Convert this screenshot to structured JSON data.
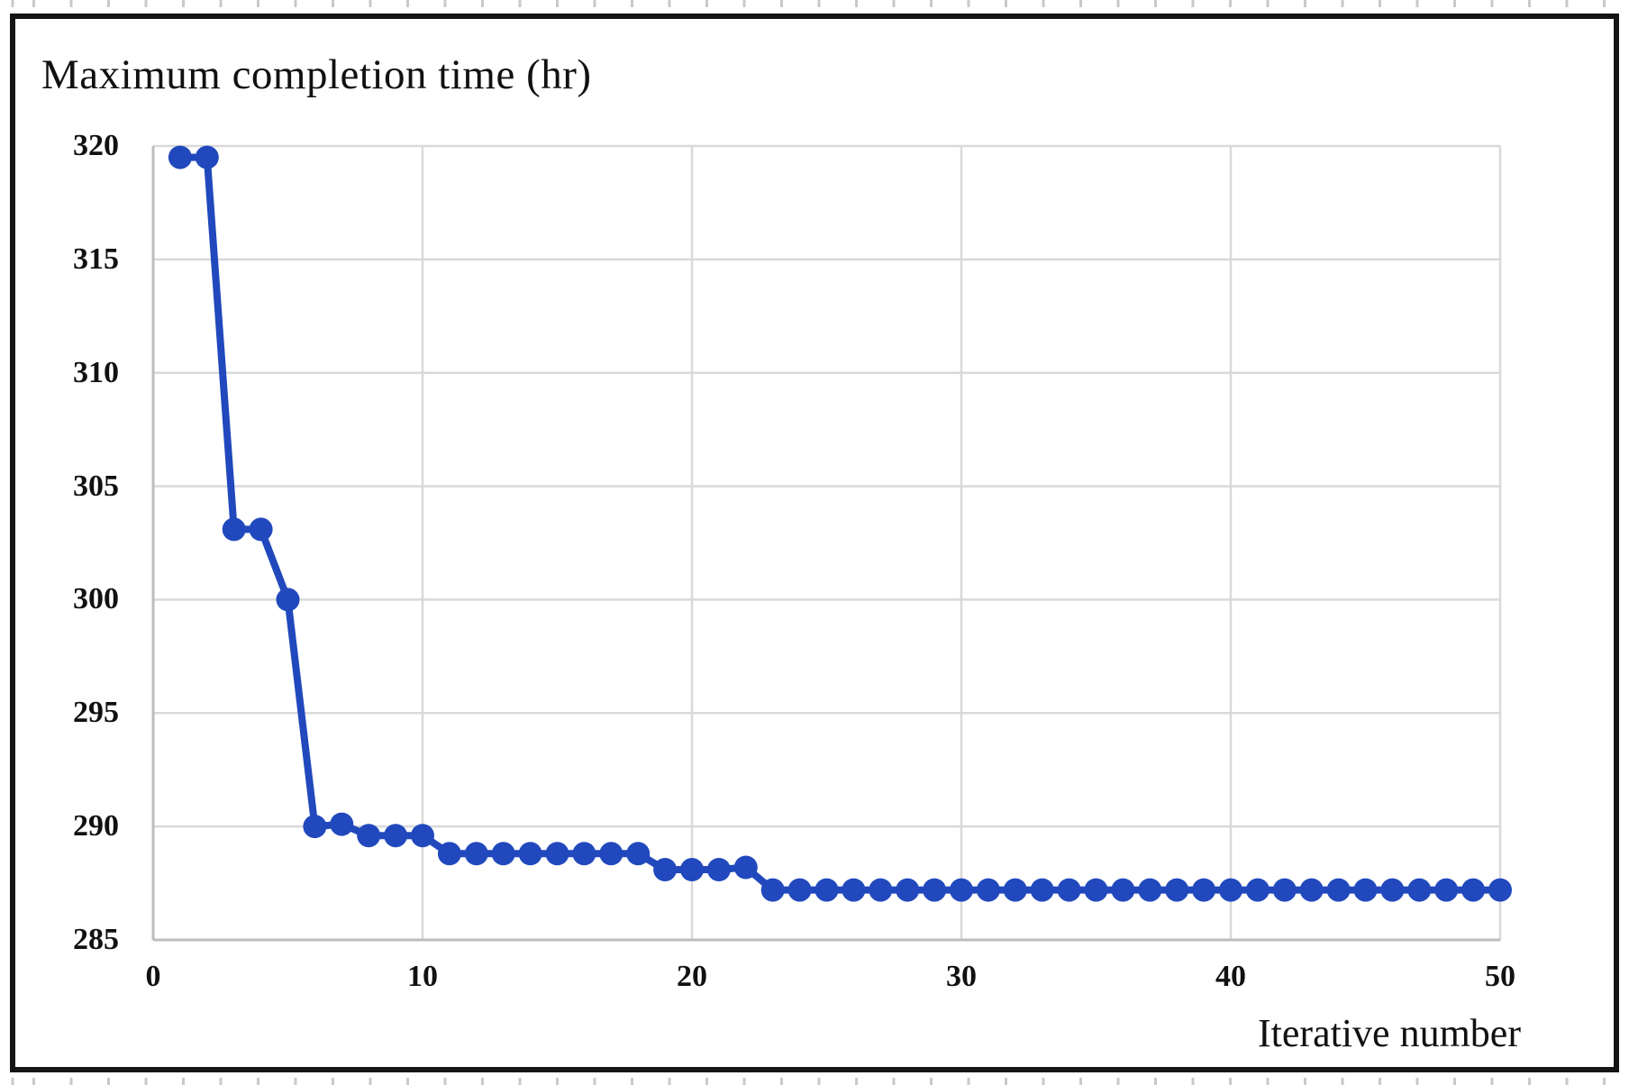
{
  "chart_data": {
    "type": "line",
    "title": "Maximum completion time (hr)",
    "xlabel": "Iterative number",
    "ylabel": "",
    "xlim": [
      0,
      50
    ],
    "ylim": [
      285,
      320
    ],
    "xticks": [
      0,
      10,
      20,
      30,
      40,
      50
    ],
    "yticks": [
      285,
      290,
      295,
      300,
      305,
      310,
      315,
      320
    ],
    "grid": true,
    "legend": "none",
    "series": [
      {
        "name": "Maximum completion time",
        "color": "#2149BD",
        "marker": "circle",
        "x": [
          1,
          2,
          3,
          4,
          5,
          6,
          7,
          8,
          9,
          10,
          11,
          12,
          13,
          14,
          15,
          16,
          17,
          18,
          19,
          20,
          21,
          22,
          23,
          24,
          25,
          26,
          27,
          28,
          29,
          30,
          31,
          32,
          33,
          34,
          35,
          36,
          37,
          38,
          39,
          40,
          41,
          42,
          43,
          44,
          45,
          46,
          47,
          48,
          49,
          50
        ],
        "y": [
          319.5,
          319.5,
          303.1,
          303.1,
          300.0,
          290.0,
          290.1,
          289.6,
          289.6,
          289.6,
          288.8,
          288.8,
          288.8,
          288.8,
          288.8,
          288.8,
          288.8,
          288.8,
          288.1,
          288.1,
          288.1,
          288.2,
          287.2,
          287.2,
          287.2,
          287.2,
          287.2,
          287.2,
          287.2,
          287.2,
          287.2,
          287.2,
          287.2,
          287.2,
          287.2,
          287.2,
          287.2,
          287.2,
          287.2,
          287.2,
          287.2,
          287.2,
          287.2,
          287.2,
          287.2,
          287.2,
          287.2,
          287.2,
          287.2,
          287.2
        ]
      }
    ]
  },
  "style": {
    "gridline_color": "#D9D9D9",
    "axis_color": "#BDBDBD",
    "frame_border_color": "#151515",
    "background": "#ffffff"
  }
}
